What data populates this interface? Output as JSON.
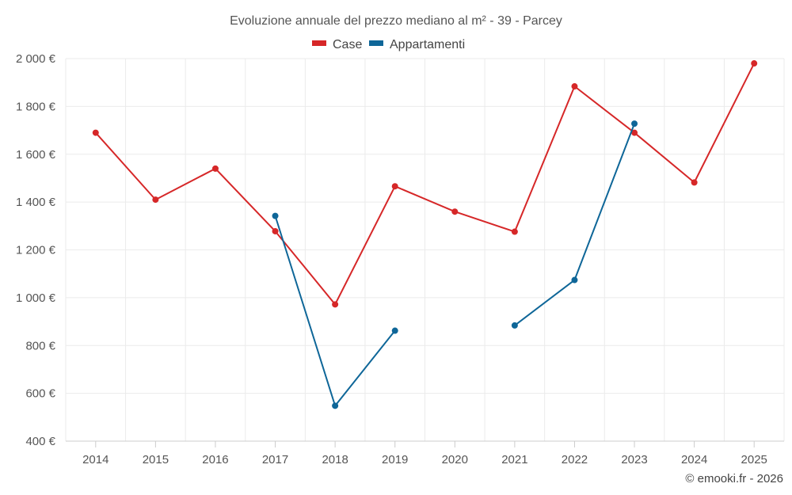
{
  "chart_data": {
    "type": "line",
    "title": "Evoluzione annuale del prezzo mediano al m² - 39 - Parcey",
    "categories": [
      "2014",
      "2015",
      "2016",
      "2017",
      "2018",
      "2019",
      "2020",
      "2021",
      "2022",
      "2023",
      "2024",
      "2025"
    ],
    "series": [
      {
        "name": "Case",
        "color": "#d62728",
        "values": [
          1690,
          1410,
          1540,
          1278,
          972,
          1466,
          1360,
          1276,
          1884,
          1690,
          1482,
          1980
        ]
      },
      {
        "name": "Appartamenti",
        "color": "#0e6698",
        "values": [
          null,
          null,
          null,
          1342,
          548,
          862,
          null,
          884,
          1074,
          1728,
          null,
          null
        ]
      }
    ],
    "ylim": [
      400,
      2000
    ],
    "yticks": [
      400,
      600,
      800,
      1000,
      1200,
      1400,
      1600,
      1800,
      2000
    ],
    "ytick_labels": [
      "400 €",
      "600 €",
      "800 €",
      "1 000 €",
      "1 200 €",
      "1 400 €",
      "1 600 €",
      "1 800 €",
      "2 000 €"
    ],
    "xlabel": "",
    "ylabel": "",
    "grid": true,
    "legend_position": "top-center"
  },
  "credit": "© emooki.fr - 2026"
}
